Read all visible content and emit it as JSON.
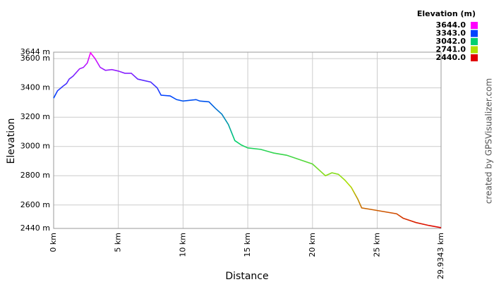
{
  "chart_data": {
    "type": "line",
    "x_label": "Distance",
    "y_label": "Elevation",
    "credit": "created by GPSVisualizer.com",
    "legend_title": "Elevation (m)",
    "legend": [
      {
        "value": 3644,
        "label": "3644.0",
        "color": "#ff00ff"
      },
      {
        "value": 3343,
        "label": "3343.0",
        "color": "#0044ff"
      },
      {
        "value": 3042,
        "label": "3042.0",
        "color": "#00d070"
      },
      {
        "value": 2741,
        "label": "2741.0",
        "color": "#b0e000"
      },
      {
        "value": 2440,
        "label": "2440.0",
        "color": "#e00000"
      }
    ],
    "x": [
      0,
      0.3,
      0.7,
      1.0,
      1.2,
      1.5,
      2.0,
      2.3,
      2.6,
      2.85,
      3.2,
      3.6,
      4.0,
      4.5,
      5.0,
      5.5,
      6.0,
      6.5,
      7.0,
      7.5,
      8.0,
      8.3,
      9.0,
      9.5,
      10.0,
      10.5,
      11.0,
      11.3,
      12.0,
      12.5,
      13.0,
      13.5,
      14.0,
      14.5,
      15.0,
      16.0,
      17.0,
      18.0,
      19.0,
      20.0,
      20.5,
      21.0,
      21.5,
      22.0,
      22.5,
      23.0,
      23.5,
      23.8,
      24.5,
      25.5,
      26.5,
      27.0,
      28.0,
      29.0,
      29.9343
    ],
    "values": [
      3330,
      3380,
      3410,
      3430,
      3460,
      3480,
      3530,
      3540,
      3570,
      3640,
      3600,
      3540,
      3520,
      3525,
      3515,
      3500,
      3500,
      3460,
      3450,
      3440,
      3400,
      3350,
      3345,
      3320,
      3310,
      3315,
      3320,
      3310,
      3305,
      3260,
      3220,
      3150,
      3040,
      3010,
      2990,
      2980,
      2955,
      2940,
      2910,
      2880,
      2840,
      2800,
      2820,
      2810,
      2770,
      2720,
      2640,
      2580,
      2570,
      2555,
      2540,
      2510,
      2480,
      2460,
      2445
    ],
    "xlim": [
      0,
      29.9343
    ],
    "ylim": [
      2440,
      3644
    ],
    "xticks": [
      {
        "value": 0,
        "label": "0 km"
      },
      {
        "value": 5,
        "label": "5 km"
      },
      {
        "value": 10,
        "label": "10 km"
      },
      {
        "value": 15,
        "label": "15 km"
      },
      {
        "value": 20,
        "label": "20 km"
      },
      {
        "value": 25,
        "label": "25 km"
      },
      {
        "value": 29.9343,
        "label": "29.9343 km"
      }
    ],
    "yticks": [
      {
        "value": 2440,
        "label": "2440 m"
      },
      {
        "value": 2600,
        "label": "2600 m"
      },
      {
        "value": 2800,
        "label": "2800 m"
      },
      {
        "value": 3000,
        "label": "3000 m"
      },
      {
        "value": 3200,
        "label": "3200 m"
      },
      {
        "value": 3400,
        "label": "3400 m"
      },
      {
        "value": 3600,
        "label": "3600 m"
      },
      {
        "value": 3644,
        "label": "3644 m"
      }
    ],
    "grid": true
  }
}
